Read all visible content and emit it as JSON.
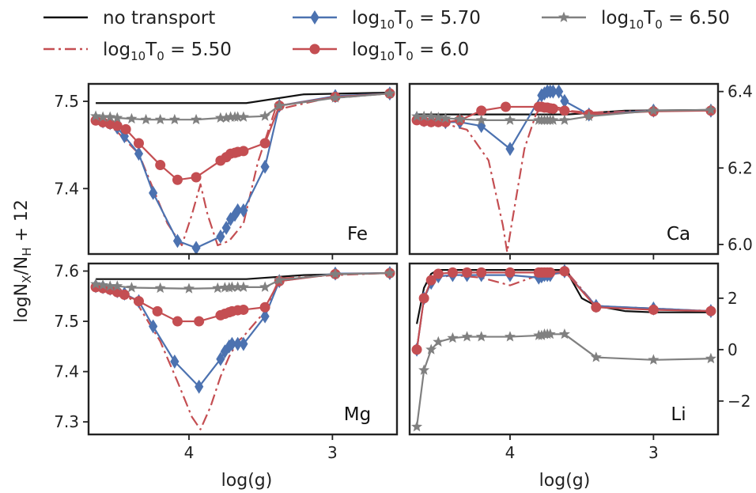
{
  "chart_data": [
    {
      "type": "line",
      "panel_label": "Fe",
      "ylabel": "",
      "xlim": [
        4.7,
        2.55
      ],
      "ylim": [
        7.325,
        7.52
      ],
      "y_ticks": [
        7.4,
        7.5
      ],
      "y_tick_labels": [
        "7.4",
        "7.5"
      ],
      "x_ticks": [
        4,
        3
      ],
      "x_tick_labels": [],
      "y_axis_side": "left",
      "series": [
        {
          "name": "no transport",
          "style": "solid",
          "color": "#111111",
          "marker": "none",
          "x": [
            4.65,
            4.4,
            4.0,
            3.6,
            3.2,
            2.6
          ],
          "y": [
            7.498,
            7.498,
            7.498,
            7.498,
            7.508,
            7.51
          ]
        },
        {
          "name": "log10T0 = 5.50",
          "style": "dashdot",
          "color": "#c44e52",
          "marker": "none",
          "x": [
            4.65,
            4.6,
            4.55,
            4.5,
            4.35,
            4.25,
            4.15,
            4.05,
            3.98,
            3.92,
            3.87,
            3.8,
            3.72,
            3.67,
            3.62,
            3.52,
            3.4,
            3.05,
            2.6
          ],
          "y": [
            7.48,
            7.475,
            7.472,
            7.465,
            7.44,
            7.4,
            7.36,
            7.335,
            7.37,
            7.405,
            7.37,
            7.335,
            7.34,
            7.35,
            7.36,
            7.43,
            7.49,
            7.503,
            7.509
          ]
        },
        {
          "name": "log10T0 = 5.70",
          "style": "solid",
          "color": "#4c72b0",
          "marker": "diamond",
          "x": [
            4.65,
            4.6,
            4.55,
            4.5,
            4.45,
            4.35,
            4.25,
            4.08,
            3.95,
            3.78,
            3.74,
            3.71,
            3.68,
            3.66,
            3.62,
            3.47,
            3.37,
            2.98,
            2.6
          ],
          "y": [
            7.48,
            7.477,
            7.475,
            7.47,
            7.46,
            7.44,
            7.395,
            7.34,
            7.332,
            7.345,
            7.355,
            7.365,
            7.37,
            7.375,
            7.375,
            7.425,
            7.495,
            7.506,
            7.509
          ]
        },
        {
          "name": "log10T0 = 6.0",
          "style": "solid",
          "color": "#c44e52",
          "marker": "circle",
          "x": [
            4.65,
            4.6,
            4.55,
            4.5,
            4.44,
            4.35,
            4.2,
            4.08,
            3.95,
            3.78,
            3.74,
            3.71,
            3.68,
            3.66,
            3.62,
            3.47,
            3.37,
            2.98,
            2.6
          ],
          "y": [
            7.478,
            7.476,
            7.474,
            7.472,
            7.468,
            7.452,
            7.427,
            7.41,
            7.413,
            7.432,
            7.436,
            7.44,
            7.441,
            7.442,
            7.443,
            7.452,
            7.495,
            7.505,
            7.509
          ]
        },
        {
          "name": "log10T0 = 6.50",
          "style": "solid",
          "color": "#808080",
          "marker": "star",
          "x": [
            4.65,
            4.6,
            4.55,
            4.5,
            4.4,
            4.3,
            4.2,
            4.1,
            3.95,
            3.78,
            3.74,
            3.71,
            3.68,
            3.66,
            3.62,
            3.47,
            3.37,
            2.98,
            2.6
          ],
          "y": [
            7.483,
            7.482,
            7.482,
            7.481,
            7.48,
            7.479,
            7.479,
            7.479,
            7.479,
            7.481,
            7.481,
            7.482,
            7.482,
            7.482,
            7.482,
            7.483,
            7.495,
            7.504,
            7.509
          ]
        }
      ]
    },
    {
      "type": "line",
      "panel_label": "Ca",
      "ylabel": "",
      "xlim": [
        4.7,
        2.55
      ],
      "ylim": [
        5.975,
        6.42
      ],
      "y_ticks": [
        6.0,
        6.2,
        6.4
      ],
      "y_tick_labels": [
        "6.0",
        "6.2",
        "6.4"
      ],
      "x_ticks": [
        4,
        3
      ],
      "x_tick_labels": [],
      "y_axis_side": "right",
      "series": [
        {
          "name": "no transport",
          "style": "solid",
          "color": "#111111",
          "marker": "none",
          "x": [
            4.65,
            4.4,
            4.0,
            3.6,
            3.2,
            2.6
          ],
          "y": [
            6.34,
            6.34,
            6.34,
            6.34,
            6.35,
            6.352
          ]
        },
        {
          "name": "log10T0 = 5.50",
          "style": "dashdot",
          "color": "#c44e52",
          "marker": "none",
          "x": [
            4.65,
            4.5,
            4.3,
            4.15,
            4.05,
            4.02,
            3.99,
            3.9,
            3.82,
            3.78,
            3.7,
            3.62,
            3.6,
            3.45,
            3.0,
            2.6
          ],
          "y": [
            6.325,
            6.32,
            6.3,
            6.22,
            6.05,
            5.98,
            6.05,
            6.25,
            6.34,
            6.36,
            6.36,
            6.355,
            6.35,
            6.345,
            6.35,
            6.35
          ]
        },
        {
          "name": "log10T0 = 5.70",
          "style": "solid",
          "color": "#4c72b0",
          "marker": "diamond",
          "x": [
            4.65,
            4.6,
            4.55,
            4.5,
            4.45,
            4.35,
            4.2,
            4.0,
            3.78,
            3.76,
            3.74,
            3.72,
            3.7,
            3.66,
            3.62,
            3.45,
            3.0,
            2.6
          ],
          "y": [
            6.33,
            6.325,
            6.325,
            6.325,
            6.32,
            6.32,
            6.31,
            6.25,
            6.39,
            6.395,
            6.4,
            6.4,
            6.4,
            6.4,
            6.375,
            6.34,
            6.35,
            6.35
          ]
        },
        {
          "name": "log10T0 = 6.0",
          "style": "solid",
          "color": "#c44e52",
          "marker": "circle",
          "x": [
            4.65,
            4.6,
            4.55,
            4.5,
            4.45,
            4.35,
            4.2,
            4.03,
            3.8,
            3.78,
            3.76,
            3.74,
            3.72,
            3.7,
            3.62,
            3.45,
            3.0,
            2.6
          ],
          "y": [
            6.325,
            6.322,
            6.32,
            6.32,
            6.32,
            6.325,
            6.35,
            6.36,
            6.36,
            6.36,
            6.358,
            6.358,
            6.356,
            6.355,
            6.35,
            6.34,
            6.348,
            6.35
          ]
        },
        {
          "name": "log10T0 = 6.50",
          "style": "solid",
          "color": "#808080",
          "marker": "star",
          "x": [
            4.65,
            4.6,
            4.55,
            4.5,
            4.45,
            4.35,
            4.2,
            4.0,
            3.8,
            3.78,
            3.76,
            3.74,
            3.72,
            3.7,
            3.62,
            3.45,
            3.0,
            2.6
          ],
          "y": [
            6.335,
            6.335,
            6.335,
            6.332,
            6.33,
            6.328,
            6.325,
            6.325,
            6.325,
            6.325,
            6.325,
            6.325,
            6.325,
            6.325,
            6.325,
            6.335,
            6.35,
            6.352
          ]
        }
      ]
    },
    {
      "type": "line",
      "panel_label": "Mg",
      "ylabel": "",
      "xlim": [
        4.7,
        2.55
      ],
      "ylim": [
        7.275,
        7.615
      ],
      "y_ticks": [
        7.3,
        7.4,
        7.5,
        7.6
      ],
      "y_tick_labels": [
        "7.3",
        "7.4",
        "7.5",
        "7.6"
      ],
      "x_ticks": [
        4,
        3
      ],
      "x_tick_labels": [
        "4",
        "3"
      ],
      "y_axis_side": "left",
      "series": [
        {
          "name": "no transport",
          "style": "solid",
          "color": "#111111",
          "marker": "none",
          "x": [
            4.65,
            4.4,
            4.0,
            3.6,
            3.2,
            2.6
          ],
          "y": [
            7.584,
            7.584,
            7.584,
            7.584,
            7.592,
            7.596
          ]
        },
        {
          "name": "log10T0 = 5.50",
          "style": "dashdot",
          "color": "#c44e52",
          "marker": "none",
          "x": [
            4.65,
            4.55,
            4.45,
            4.35,
            4.2,
            4.08,
            3.98,
            3.92,
            3.85,
            3.78,
            3.72,
            3.66,
            3.62,
            3.47,
            3.37,
            2.98,
            2.6
          ],
          "y": [
            7.57,
            7.565,
            7.555,
            7.53,
            7.46,
            7.38,
            7.31,
            7.285,
            7.33,
            7.39,
            7.43,
            7.46,
            7.47,
            7.52,
            7.585,
            7.592,
            7.596
          ]
        },
        {
          "name": "log10T0 = 5.70",
          "style": "solid",
          "color": "#4c72b0",
          "marker": "diamond",
          "x": [
            4.65,
            4.6,
            4.55,
            4.5,
            4.45,
            4.35,
            4.25,
            4.1,
            3.93,
            3.78,
            3.75,
            3.72,
            3.7,
            3.66,
            3.62,
            3.47,
            3.37,
            2.98,
            2.6
          ],
          "y": [
            7.57,
            7.568,
            7.565,
            7.56,
            7.555,
            7.54,
            7.49,
            7.42,
            7.37,
            7.425,
            7.44,
            7.45,
            7.455,
            7.455,
            7.455,
            7.51,
            7.58,
            7.595,
            7.596
          ]
        },
        {
          "name": "log10T0 = 6.0",
          "style": "solid",
          "color": "#c44e52",
          "marker": "circle",
          "x": [
            4.65,
            4.6,
            4.55,
            4.5,
            4.45,
            4.35,
            4.22,
            4.08,
            3.93,
            3.78,
            3.75,
            3.72,
            3.7,
            3.66,
            3.62,
            3.47,
            3.37,
            2.98,
            2.6
          ],
          "y": [
            7.568,
            7.566,
            7.563,
            7.558,
            7.553,
            7.54,
            7.52,
            7.5,
            7.5,
            7.512,
            7.515,
            7.518,
            7.52,
            7.522,
            7.523,
            7.528,
            7.58,
            7.594,
            7.596
          ]
        },
        {
          "name": "log10T0 = 6.50",
          "style": "solid",
          "color": "#808080",
          "marker": "star",
          "x": [
            4.65,
            4.6,
            4.55,
            4.5,
            4.4,
            4.2,
            4.0,
            3.8,
            3.75,
            3.72,
            3.7,
            3.66,
            3.62,
            3.47,
            3.37,
            2.98,
            2.6
          ],
          "y": [
            7.574,
            7.572,
            7.57,
            7.57,
            7.567,
            7.566,
            7.565,
            7.566,
            7.567,
            7.567,
            7.568,
            7.568,
            7.568,
            7.568,
            7.582,
            7.594,
            7.596
          ]
        }
      ]
    },
    {
      "type": "line",
      "panel_label": "Li",
      "ylabel": "",
      "xlim": [
        4.7,
        2.55
      ],
      "ylim": [
        -3.3,
        3.35
      ],
      "y_ticks": [
        -2,
        0,
        2
      ],
      "y_tick_labels": [
        "−2",
        "0",
        "2"
      ],
      "x_ticks": [
        4,
        3
      ],
      "x_tick_labels": [
        "4",
        "3"
      ],
      "y_axis_side": "right",
      "series": [
        {
          "name": "no transport",
          "style": "solid",
          "color": "#111111",
          "marker": "none",
          "x": [
            4.65,
            4.6,
            4.55,
            4.5,
            4.4,
            4.3,
            4.2,
            4.0,
            3.8,
            3.6,
            3.58,
            3.5,
            3.4,
            3.2,
            3.0,
            2.6
          ],
          "y": [
            1.0,
            2.4,
            2.95,
            3.1,
            3.1,
            3.1,
            3.1,
            3.1,
            3.1,
            3.1,
            2.8,
            2.0,
            1.7,
            1.5,
            1.45,
            1.45
          ]
        },
        {
          "name": "log10T0 = 5.50",
          "style": "dashdot",
          "color": "#c44e52",
          "marker": "none",
          "x": [
            4.65,
            4.6,
            4.55,
            4.5,
            4.4,
            4.3,
            4.2,
            4.0,
            3.8,
            3.6,
            3.4,
            3.0,
            2.6
          ],
          "y": [
            0.0,
            2.0,
            2.6,
            2.8,
            2.9,
            2.85,
            2.8,
            2.5,
            2.9,
            3.0,
            1.7,
            1.6,
            1.5
          ]
        },
        {
          "name": "log10T0 = 5.70",
          "style": "solid",
          "color": "#4c72b0",
          "marker": "diamond",
          "x": [
            4.65,
            4.6,
            4.55,
            4.5,
            4.4,
            4.3,
            4.2,
            4.0,
            3.8,
            3.78,
            3.76,
            3.74,
            3.72,
            3.62,
            3.4,
            3.0,
            2.6
          ],
          "y": [
            0.0,
            2.0,
            2.6,
            2.85,
            2.9,
            2.9,
            2.9,
            2.9,
            2.8,
            2.85,
            2.9,
            2.9,
            2.9,
            3.05,
            1.7,
            1.6,
            1.5
          ]
        },
        {
          "name": "log10T0 = 6.0",
          "style": "solid",
          "color": "#c44e52",
          "marker": "circle",
          "x": [
            4.65,
            4.6,
            4.55,
            4.5,
            4.4,
            4.3,
            4.2,
            4.0,
            3.8,
            3.78,
            3.76,
            3.74,
            3.72,
            3.62,
            3.4,
            3.0,
            2.6
          ],
          "y": [
            0.0,
            2.0,
            2.7,
            2.95,
            3.0,
            3.0,
            3.0,
            3.0,
            3.0,
            3.0,
            3.0,
            3.0,
            3.0,
            3.05,
            1.65,
            1.55,
            1.5
          ]
        },
        {
          "name": "log10T0 = 6.50",
          "style": "solid",
          "color": "#808080",
          "marker": "star",
          "x": [
            4.65,
            4.6,
            4.55,
            4.5,
            4.4,
            4.3,
            4.2,
            4.0,
            3.8,
            3.78,
            3.76,
            3.74,
            3.72,
            3.62,
            3.4,
            3.0,
            2.6
          ],
          "y": [
            -3.0,
            -0.8,
            0.0,
            0.3,
            0.45,
            0.5,
            0.5,
            0.5,
            0.55,
            0.55,
            0.6,
            0.6,
            0.6,
            0.6,
            -0.3,
            -0.4,
            -0.35
          ]
        }
      ]
    }
  ],
  "figure": {
    "ylabel_text": "logN",
    "ylabel_sub_x": "X",
    "ylabel_slash": "/N",
    "ylabel_sub_h": "H",
    "ylabel_tail": " + 12",
    "xlabel_left": "log(g)",
    "xlabel_right": "log(g)"
  },
  "legend": {
    "placement": "top, three columns",
    "entries": [
      {
        "series": "no transport",
        "color": "#111111",
        "style": "solid",
        "marker": "none",
        "text": "no transport"
      },
      {
        "series": "log10T0 = 5.50",
        "color": "#c44e52",
        "style": "dashdot",
        "marker": "none",
        "prefix": "log",
        "sub": "10",
        "mid": "T",
        "sub2": "0",
        "suffix": " = 5.50"
      },
      {
        "series": "log10T0 = 5.70",
        "color": "#4c72b0",
        "style": "solid",
        "marker": "diamond",
        "prefix": "log",
        "sub": "10",
        "mid": "T",
        "sub2": "0",
        "suffix": " = 5.70"
      },
      {
        "series": "log10T0 = 6.0",
        "color": "#c44e52",
        "style": "solid",
        "marker": "circle",
        "prefix": "log",
        "sub": "10",
        "mid": "T",
        "sub2": "0",
        "suffix": " = 6.0"
      },
      {
        "series": "log10T0 = 6.50",
        "color": "#808080",
        "style": "solid",
        "marker": "star",
        "prefix": "log",
        "sub": "10",
        "mid": "T",
        "sub2": "0",
        "suffix": " = 6.50"
      }
    ]
  }
}
